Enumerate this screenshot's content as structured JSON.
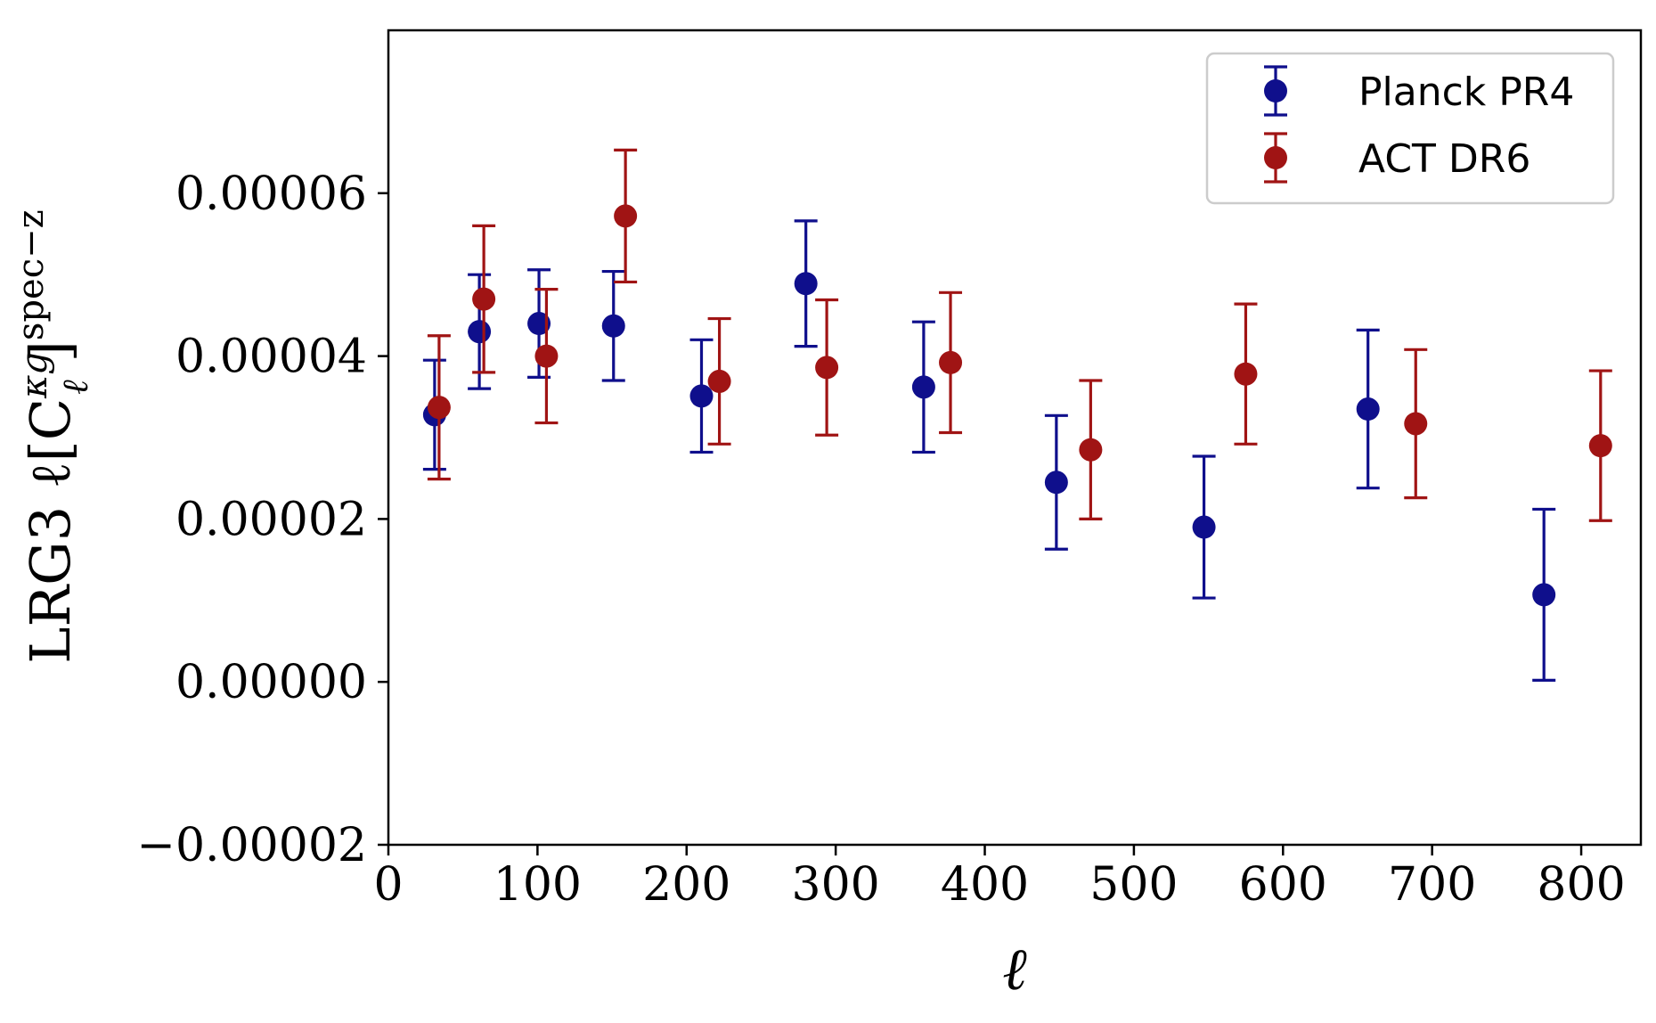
{
  "chart_data": {
    "type": "scatter",
    "xlabel": "ℓ",
    "ylabel_prefix": "LRG3 ℓ[C",
    "ylabel_sup": "κg",
    "ylabel_sub": "ℓ",
    "ylabel_suffix": "]",
    "ylabel_sup2": "spec−z",
    "xlim": [
      0,
      840
    ],
    "ylim": [
      -2e-05,
      8e-05
    ],
    "x_ticks": [
      0,
      100,
      200,
      300,
      400,
      500,
      600,
      700,
      800
    ],
    "x_tick_labels": [
      "0",
      "100",
      "200",
      "300",
      "400",
      "500",
      "600",
      "700",
      "800"
    ],
    "y_ticks": [
      -2e-05,
      0.0,
      2e-05,
      4e-05,
      6e-05
    ],
    "y_tick_labels": [
      "−0.00002",
      "0.00000",
      "0.00002",
      "0.00004",
      "0.00006"
    ],
    "legend_position": "top-right",
    "grid": false,
    "series": [
      {
        "name": "Planck PR4",
        "color": "#0f0f8c",
        "points": [
          {
            "x": 31,
            "y": 3.28e-05,
            "err": 6.7e-06
          },
          {
            "x": 61,
            "y": 4.3e-05,
            "err": 7e-06
          },
          {
            "x": 101,
            "y": 4.4e-05,
            "err": 6.6e-06
          },
          {
            "x": 151,
            "y": 4.37e-05,
            "err": 6.7e-06
          },
          {
            "x": 210,
            "y": 3.51e-05,
            "err": 6.9e-06
          },
          {
            "x": 280,
            "y": 4.89e-05,
            "err": 7.7e-06
          },
          {
            "x": 359,
            "y": 3.62e-05,
            "err": 8e-06
          },
          {
            "x": 448,
            "y": 2.45e-05,
            "err": 8.2e-06
          },
          {
            "x": 547,
            "y": 1.9e-05,
            "err": 8.7e-06
          },
          {
            "x": 657,
            "y": 3.35e-05,
            "err": 9.7e-06
          },
          {
            "x": 775,
            "y": 1.07e-05,
            "err": 1.05e-05
          }
        ]
      },
      {
        "name": "ACT DR6",
        "color": "#a01414",
        "points": [
          {
            "x": 34,
            "y": 3.37e-05,
            "err": 8.8e-06
          },
          {
            "x": 64,
            "y": 4.7e-05,
            "err": 9e-06
          },
          {
            "x": 106,
            "y": 4e-05,
            "err": 8.2e-06
          },
          {
            "x": 159,
            "y": 5.72e-05,
            "err": 8.1e-06
          },
          {
            "x": 222,
            "y": 3.69e-05,
            "err": 7.7e-06
          },
          {
            "x": 294,
            "y": 3.86e-05,
            "err": 8.3e-06
          },
          {
            "x": 377,
            "y": 3.92e-05,
            "err": 8.6e-06
          },
          {
            "x": 471,
            "y": 2.85e-05,
            "err": 8.5e-06
          },
          {
            "x": 575,
            "y": 3.78e-05,
            "err": 8.6e-06
          },
          {
            "x": 689,
            "y": 3.17e-05,
            "err": 9.1e-06
          },
          {
            "x": 813,
            "y": 2.9e-05,
            "err": 9.2e-06
          }
        ]
      }
    ]
  }
}
